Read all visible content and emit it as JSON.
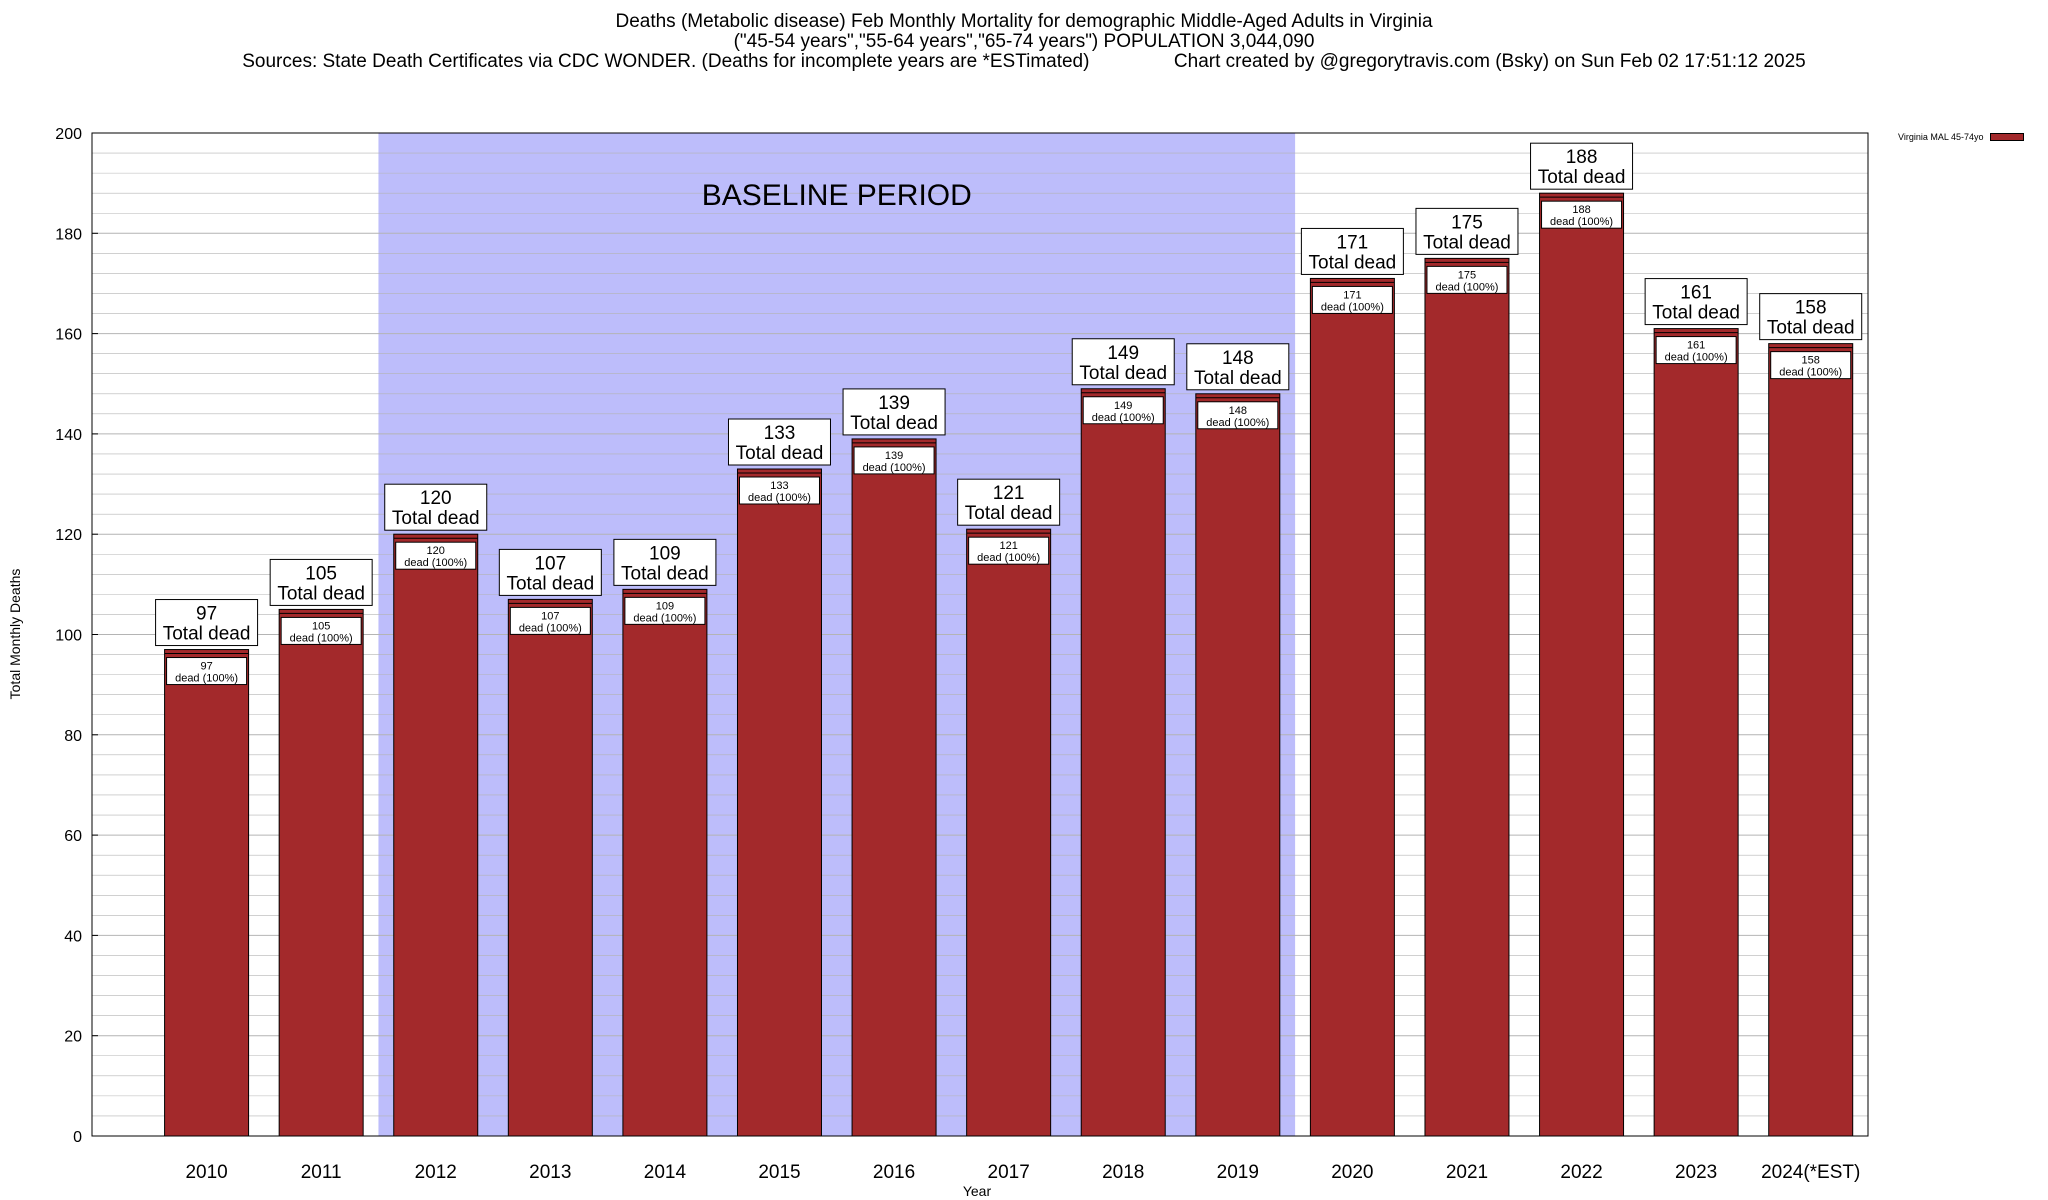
{
  "header": {
    "title_line1": "Deaths (Metabolic disease) Feb Monthly Mortality for demographic Middle-Aged Adults in Virginia",
    "title_line2": "(\"45-54 years\",\"55-64 years\",\"65-74 years\") POPULATION 3,044,090",
    "title_line3": "Sources: State Death Certificates via CDC WONDER. (Deaths for incomplete years are *ESTimated)                Chart created by @gregorytravis.com (Bsky) on Sun Feb 02 17:51:12 2025"
  },
  "colors": {
    "bar": "#a3292b",
    "baseline_band": "#bdbdfb",
    "grid": "#b4b4b4"
  },
  "chart_data": {
    "type": "bar",
    "categories": [
      "2010",
      "2011",
      "2012",
      "2013",
      "2014",
      "2015",
      "2016",
      "2017",
      "2018",
      "2019",
      "2020",
      "2021",
      "2022",
      "2023",
      "2024(*EST)"
    ],
    "series": [
      {
        "name": "Virginia MAL 45-74yo",
        "values": [
          97,
          105,
          120,
          107,
          109,
          133,
          139,
          121,
          149,
          148,
          171,
          175,
          188,
          161,
          158
        ]
      }
    ],
    "bar_label_suffix": "Total dead",
    "inner_label_suffix": "dead (100%)",
    "xlabel": "Year",
    "ylabel": "Total Monthly Deaths",
    "ylim": [
      0,
      200
    ],
    "yticks": [
      0,
      20,
      40,
      60,
      80,
      100,
      120,
      140,
      160,
      180,
      200
    ],
    "minor_grid_step": 4,
    "grid": true,
    "legend_position": "top-right",
    "annotation": {
      "text": "BASELINE PERIOD",
      "from_category": "2012",
      "to_category": "2019"
    }
  }
}
